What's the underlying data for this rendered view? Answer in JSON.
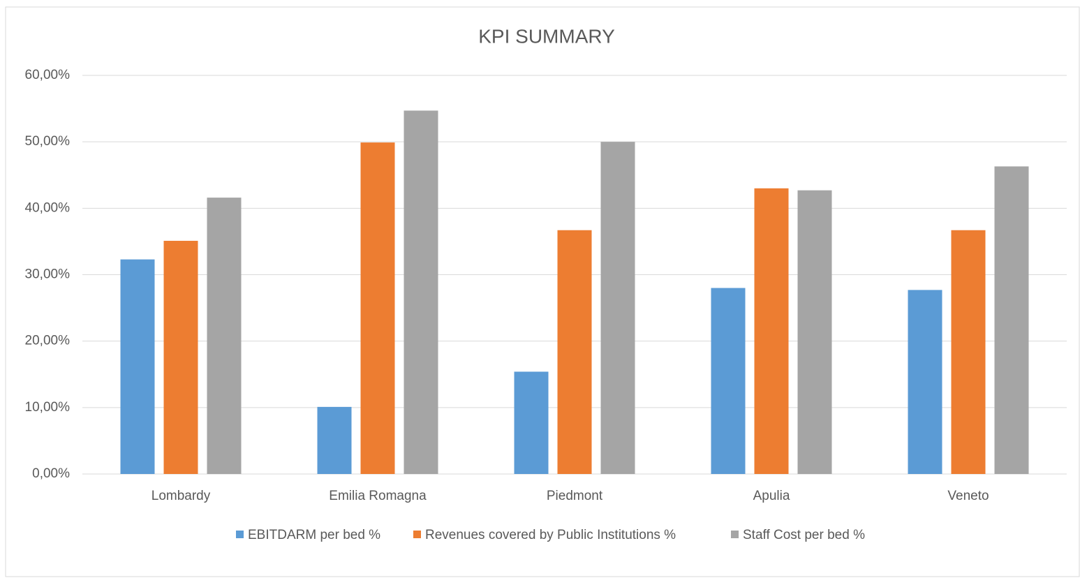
{
  "chart_data": {
    "type": "bar",
    "title": "KPI SUMMARY",
    "categories": [
      "Lombardy",
      "Emilia Romagna",
      "Piedmont",
      "Apulia",
      "Veneto"
    ],
    "series": [
      {
        "name": "EBITDARM per bed %",
        "color": "#5b9bd5",
        "values": [
          32.3,
          10.1,
          15.4,
          28.0,
          27.7
        ]
      },
      {
        "name": "Revenues covered by Public Institutions %",
        "color": "#ed7d31",
        "values": [
          35.1,
          49.9,
          36.7,
          43.0,
          36.7
        ]
      },
      {
        "name": "Staff Cost per bed %",
        "color": "#a5a5a5",
        "values": [
          41.6,
          54.7,
          50.0,
          42.7,
          46.3
        ]
      }
    ],
    "ylim": [
      0,
      60
    ],
    "yticks": [
      {
        "value": 0,
        "label": "0,00%"
      },
      {
        "value": 10,
        "label": "10,00%"
      },
      {
        "value": 20,
        "label": "20,00%"
      },
      {
        "value": 30,
        "label": "30,00%"
      },
      {
        "value": 40,
        "label": "40,00%"
      },
      {
        "value": 50,
        "label": "50,00%"
      },
      {
        "value": 60,
        "label": "60,00%"
      }
    ],
    "grid": true,
    "legend": "bottom"
  }
}
